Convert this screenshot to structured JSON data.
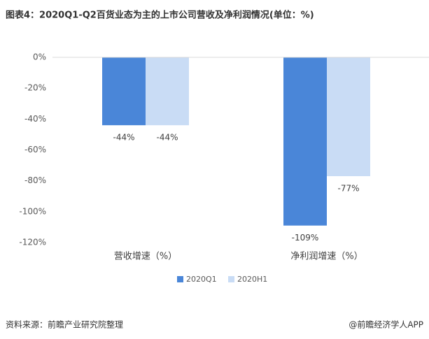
{
  "chart_data": {
    "type": "bar",
    "title": "图表4：2020Q1-Q2百货业态为主的上市公司营收及净利润情况(单位：%)",
    "categories": [
      "营收增速（%）",
      "净利润增速（%）"
    ],
    "series": [
      {
        "name": "2020Q1",
        "color": "#4a86d8",
        "values": [
          -44,
          -109
        ],
        "value_labels": [
          "-44%",
          "-109%"
        ]
      },
      {
        "name": "2020H1",
        "color": "#c9dcf5",
        "values": [
          -44,
          -77
        ],
        "value_labels": [
          "-44%",
          "-77%"
        ]
      }
    ],
    "ylim": [
      -120,
      0
    ],
    "yticks": [
      {
        "value": 0,
        "label": "0%"
      },
      {
        "value": -20,
        "label": "-20%"
      },
      {
        "value": -40,
        "label": "-40%"
      },
      {
        "value": -60,
        "label": "-60%"
      },
      {
        "value": -80,
        "label": "-80%"
      },
      {
        "value": -100,
        "label": "-100%"
      },
      {
        "value": -120,
        "label": "-120%"
      }
    ],
    "grid": false,
    "legend": "bottom",
    "source": "资料来源：前瞻产业研究院整理",
    "credit": "@前瞻经济学人APP"
  }
}
